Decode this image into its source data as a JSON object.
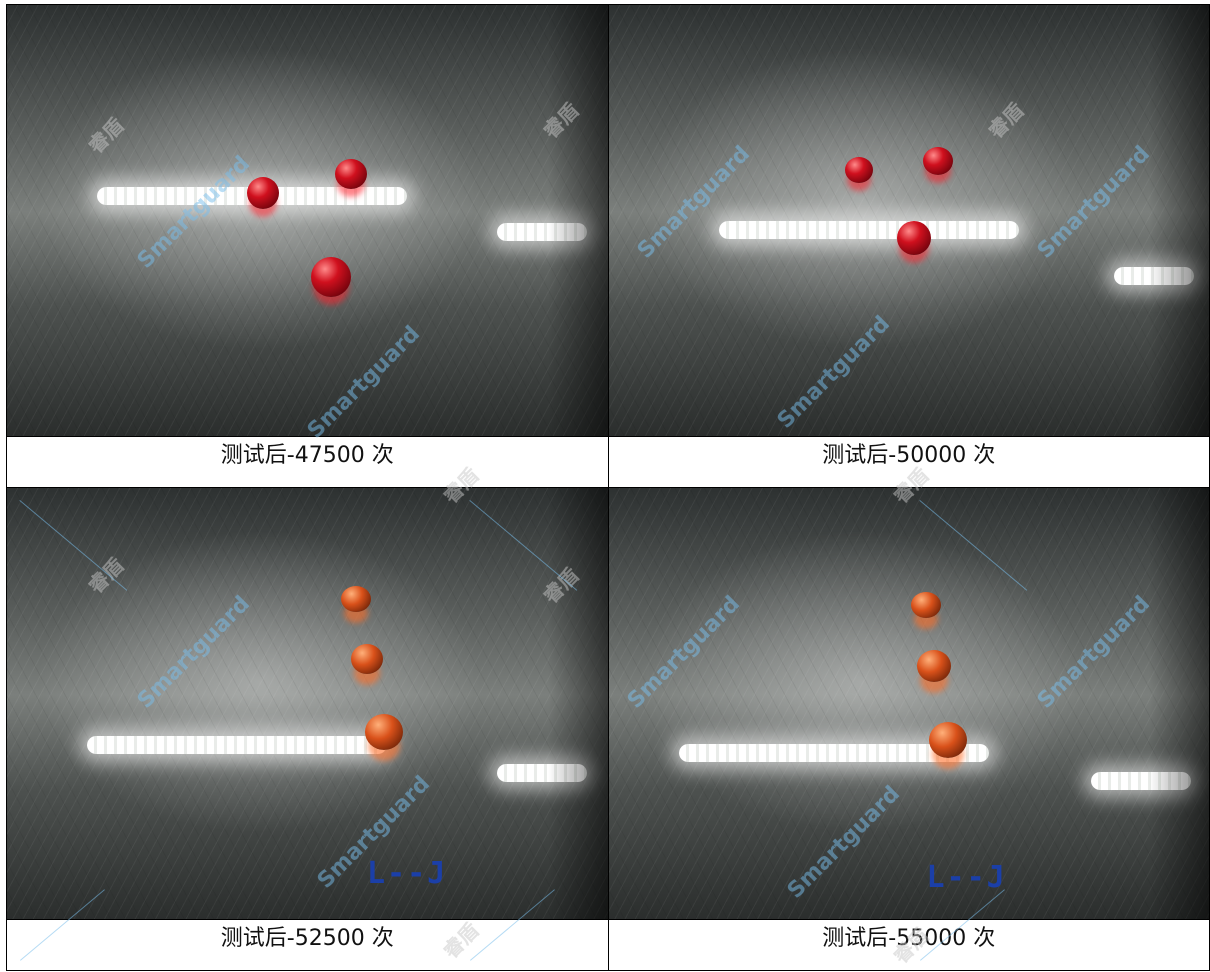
{
  "captions": [
    "测试后-47500 次",
    "测试后-50000 次",
    "测试后-52500 次",
    "测试后-55000 次"
  ],
  "watermark": {
    "brand": "Smartguard",
    "cjk": "睿盾"
  },
  "ink_mark": "L--J"
}
